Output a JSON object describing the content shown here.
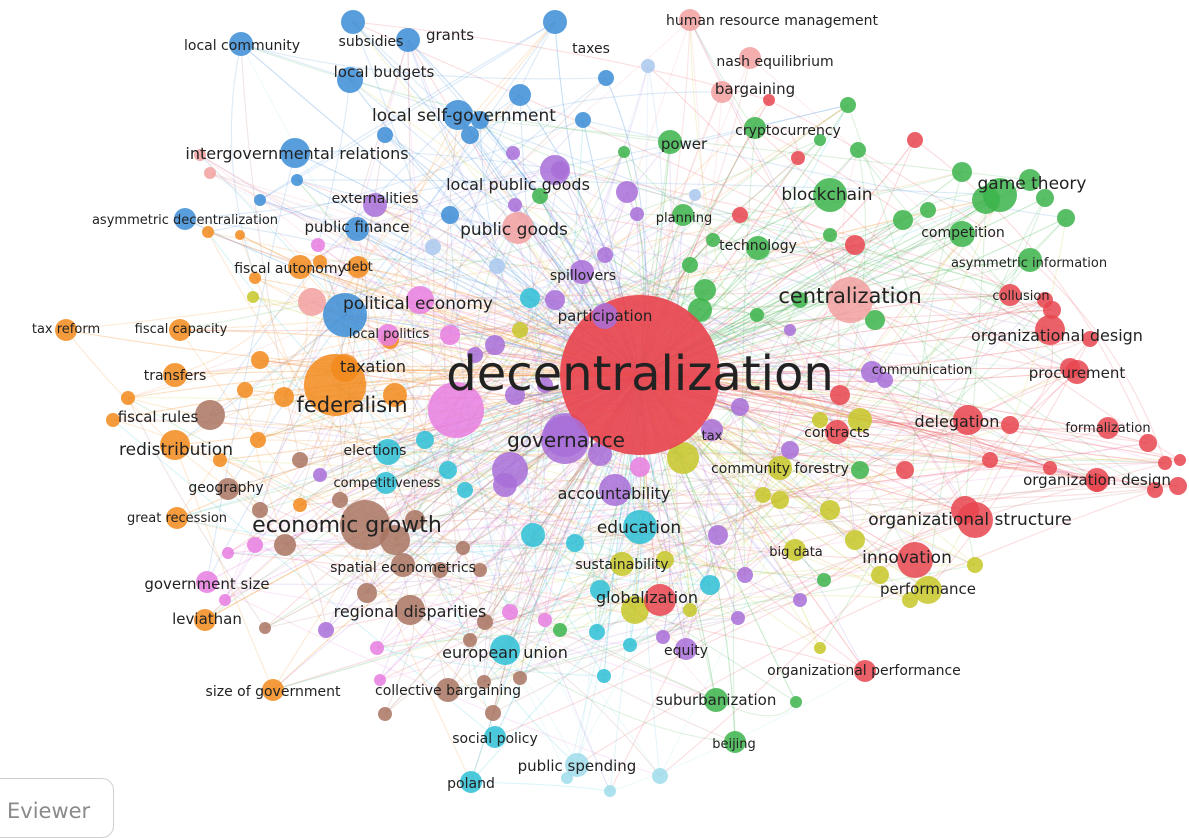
{
  "viewer_tab": {
    "label": "Eviewer"
  },
  "colors": {
    "red": "#e8454f",
    "green": "#3cb44b",
    "blue": "#3c8dd6",
    "orange": "#f28a1c",
    "purple": "#a86ed8",
    "brown": "#a97462",
    "pink": "#e77ee0",
    "cyan": "#2ec0d6",
    "yellow": "#c7c728",
    "lightcyan": "#9fdcea",
    "salmon": "#f2a0a0",
    "lightblue": "#a9c8ee"
  },
  "network": {
    "nodes": [
      {
        "label": "decentralization",
        "cluster": "red",
        "weight": 100
      },
      {
        "label": "federalism",
        "cluster": "orange",
        "weight": 45
      },
      {
        "label": "economic growth",
        "cluster": "brown",
        "weight": 30
      },
      {
        "label": "governance",
        "cluster": "purple",
        "weight": 28
      },
      {
        "label": "centralization",
        "cluster": "salmon",
        "weight": 24
      },
      {
        "label": "political economy",
        "cluster": "blue",
        "weight": 22
      },
      {
        "label": "organizational structure",
        "cluster": "red",
        "weight": 15
      },
      {
        "label": "innovation",
        "cluster": "red",
        "weight": 15
      },
      {
        "label": "game theory",
        "cluster": "green",
        "weight": 13
      },
      {
        "label": "blockchain",
        "cluster": "green",
        "weight": 13
      },
      {
        "label": "accountability",
        "cluster": "purple",
        "weight": 12
      },
      {
        "label": "education",
        "cluster": "cyan",
        "weight": 14
      },
      {
        "label": "globalization",
        "cluster": "red",
        "weight": 12
      },
      {
        "label": "public goods",
        "cluster": "salmon",
        "weight": 12
      },
      {
        "label": "local self-government",
        "cluster": "blue",
        "weight": 11
      },
      {
        "label": "intergovernmental relations",
        "cluster": "blue",
        "weight": 10
      },
      {
        "label": "local public goods",
        "cluster": "purple",
        "weight": 10
      },
      {
        "label": "regional disparities",
        "cluster": "brown",
        "weight": 10
      },
      {
        "label": "redistribution",
        "cluster": "orange",
        "weight": 10
      },
      {
        "label": "fiscal rules",
        "cluster": "brown",
        "weight": 10
      },
      {
        "label": "organizational design",
        "cluster": "red",
        "weight": 11
      },
      {
        "label": "delegation",
        "cluster": "red",
        "weight": 10
      },
      {
        "label": "european union",
        "cluster": "cyan",
        "weight": 10
      },
      {
        "label": "taxation",
        "cluster": "orange",
        "weight": 9
      },
      {
        "label": "performance",
        "cluster": "yellow",
        "weight": 9
      },
      {
        "label": "elections",
        "cluster": "cyan",
        "weight": 8
      },
      {
        "label": "local budgets",
        "cluster": "blue",
        "weight": 8
      },
      {
        "label": "grants",
        "cluster": "blue",
        "weight": 7
      },
      {
        "label": "subsidies",
        "cluster": "blue",
        "weight": 7
      },
      {
        "label": "local community",
        "cluster": "blue",
        "weight": 7
      },
      {
        "label": "taxes",
        "cluster": "blue",
        "weight": 7
      },
      {
        "label": "human resource management",
        "cluster": "salmon",
        "weight": 6
      },
      {
        "label": "nash equilibrium",
        "cluster": "salmon",
        "weight": 6
      },
      {
        "label": "bargaining",
        "cluster": "salmon",
        "weight": 6
      },
      {
        "label": "cryptocurrency",
        "cluster": "green",
        "weight": 6
      },
      {
        "label": "power",
        "cluster": "green",
        "weight": 7
      },
      {
        "label": "externalities",
        "cluster": "purple",
        "weight": 7
      },
      {
        "label": "asymmetric decentralization",
        "cluster": "blue",
        "weight": 6
      },
      {
        "label": "public finance",
        "cluster": "blue",
        "weight": 7
      },
      {
        "label": "planning",
        "cluster": "green",
        "weight": 6
      },
      {
        "label": "technology",
        "cluster": "green",
        "weight": 7
      },
      {
        "label": "competition",
        "cluster": "green",
        "weight": 8
      },
      {
        "label": "asymmetric information",
        "cluster": "green",
        "weight": 7
      },
      {
        "label": "fiscal autonomy",
        "cluster": "orange",
        "weight": 7
      },
      {
        "label": "debt",
        "cluster": "orange",
        "weight": 6
      },
      {
        "label": "spillovers",
        "cluster": "purple",
        "weight": 7
      },
      {
        "label": "collusion",
        "cluster": "red",
        "weight": 6
      },
      {
        "label": "tax reform",
        "cluster": "orange",
        "weight": 6
      },
      {
        "label": "fiscal capacity",
        "cluster": "orange",
        "weight": 6
      },
      {
        "label": "local politics",
        "cluster": "pink",
        "weight": 6
      },
      {
        "label": "participation",
        "cluster": "purple",
        "weight": 8
      },
      {
        "label": "communication",
        "cluster": "purple",
        "weight": 6
      },
      {
        "label": "procurement",
        "cluster": "red",
        "weight": 7
      },
      {
        "label": "transfers",
        "cluster": "orange",
        "weight": 7
      },
      {
        "label": "tax",
        "cluster": "purple",
        "weight": 6
      },
      {
        "label": "contracts",
        "cluster": "red",
        "weight": 7
      },
      {
        "label": "formalization",
        "cluster": "red",
        "weight": 6
      },
      {
        "label": "community forestry",
        "cluster": "yellow",
        "weight": 7
      },
      {
        "label": "organization design",
        "cluster": "red",
        "weight": 7
      },
      {
        "label": "competitiveness",
        "cluster": "cyan",
        "weight": 6
      },
      {
        "label": "geography",
        "cluster": "brown",
        "weight": 6
      },
      {
        "label": "great recession",
        "cluster": "orange",
        "weight": 6
      },
      {
        "label": "big data",
        "cluster": "yellow",
        "weight": 6
      },
      {
        "label": "spatial econometrics",
        "cluster": "brown",
        "weight": 7
      },
      {
        "label": "sustainability",
        "cluster": "yellow",
        "weight": 7
      },
      {
        "label": "government size",
        "cluster": "pink",
        "weight": 6
      },
      {
        "label": "leviathan",
        "cluster": "orange",
        "weight": 6
      },
      {
        "label": "equity",
        "cluster": "purple",
        "weight": 6
      },
      {
        "label": "organizational performance",
        "cluster": "red",
        "weight": 6
      },
      {
        "label": "size of government",
        "cluster": "orange",
        "weight": 6
      },
      {
        "label": "collective bargaining",
        "cluster": "brown",
        "weight": 7
      },
      {
        "label": "suburbanization",
        "cluster": "green",
        "weight": 7
      },
      {
        "label": "social policy",
        "cluster": "cyan",
        "weight": 6
      },
      {
        "label": "beijing",
        "cluster": "green",
        "weight": 6
      },
      {
        "label": "public spending",
        "cluster": "lightcyan",
        "weight": 7
      },
      {
        "label": "poland",
        "cluster": "cyan",
        "weight": 6
      }
    ]
  }
}
